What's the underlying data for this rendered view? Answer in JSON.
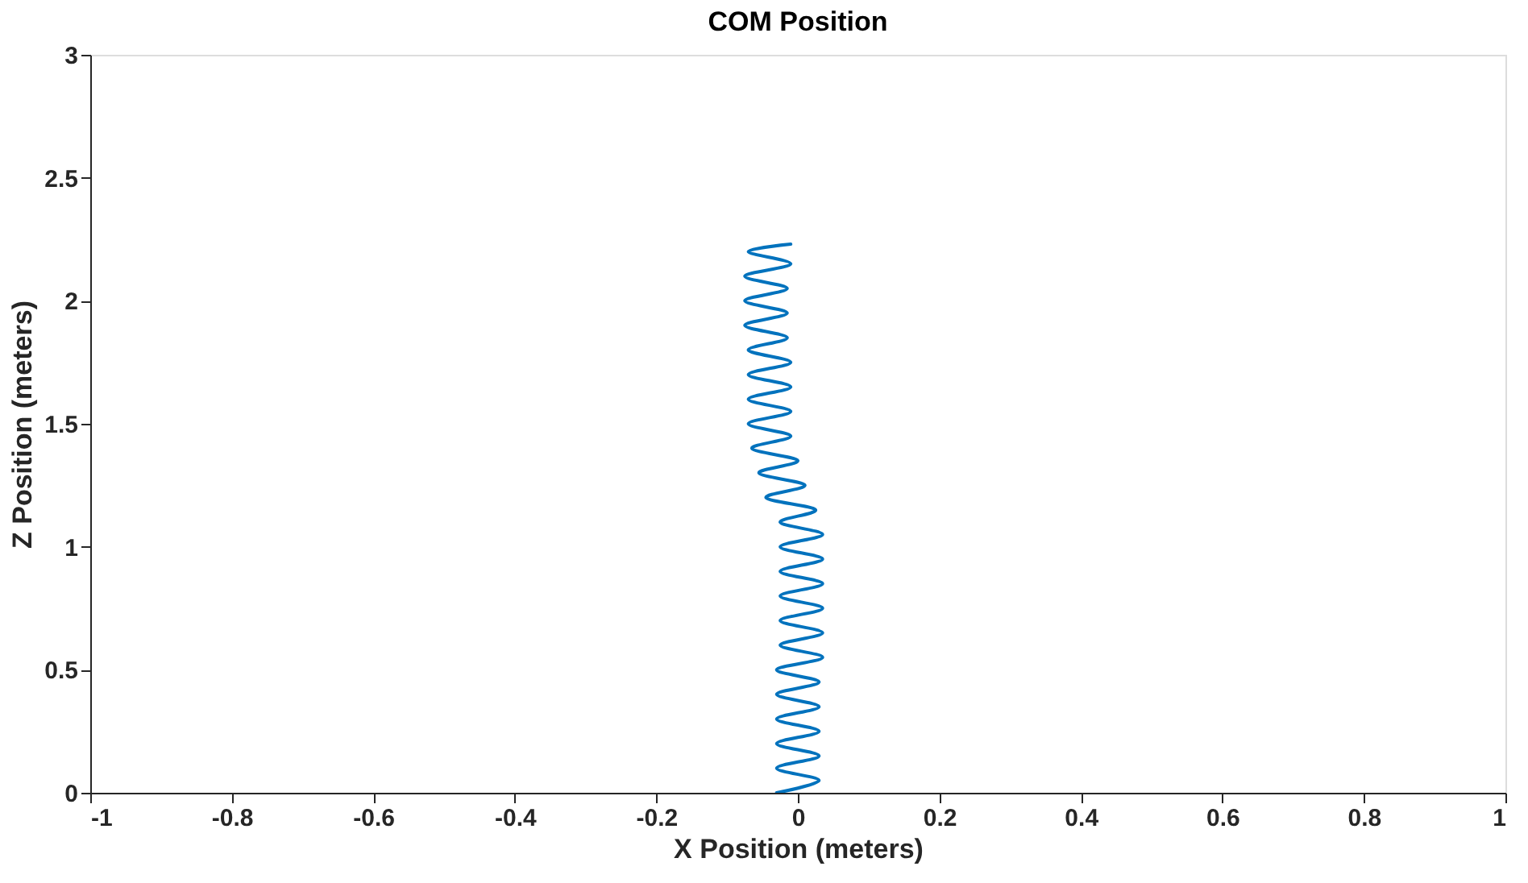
{
  "chart_data": {
    "type": "line",
    "title": "COM Position",
    "xlabel": "X Position (meters)",
    "ylabel": "Z Position (meters)",
    "series": [
      {
        "color": "#0072bd",
        "x": [
          -0.03,
          0.03,
          -0.03,
          0.03,
          -0.03,
          0.03,
          -0.03,
          0.03,
          -0.03,
          0.03,
          -0.03,
          0.035,
          -0.025,
          0.035,
          -0.025,
          0.035,
          -0.025,
          0.035,
          -0.025,
          0.035,
          -0.025,
          0.035,
          -0.025,
          0.025,
          -0.045,
          0.01,
          -0.055,
          0.0,
          -0.065,
          -0.01,
          -0.07,
          -0.01,
          -0.07,
          -0.01,
          -0.07,
          -0.01,
          -0.07,
          -0.015,
          -0.075,
          -0.015,
          -0.075,
          -0.015,
          -0.075,
          -0.01,
          -0.07,
          -0.01
        ],
        "values": [
          0.0,
          0.05,
          0.1,
          0.15,
          0.2,
          0.25,
          0.3,
          0.35,
          0.4,
          0.45,
          0.5,
          0.55,
          0.6,
          0.65,
          0.7,
          0.75,
          0.8,
          0.85,
          0.9,
          0.95,
          1.0,
          1.05,
          1.1,
          1.15,
          1.2,
          1.25,
          1.3,
          1.35,
          1.4,
          1.45,
          1.5,
          1.55,
          1.6,
          1.65,
          1.7,
          1.75,
          1.8,
          1.85,
          1.9,
          1.95,
          2.0,
          2.05,
          2.1,
          2.15,
          2.2,
          2.23
        ]
      }
    ],
    "xlim": [
      -1,
      1
    ],
    "xticks": [
      -1,
      -0.8,
      -0.6,
      -0.4,
      -0.2,
      0,
      0.2,
      0.4,
      0.6,
      0.8,
      1
    ],
    "ylim": [
      0,
      3
    ],
    "yticks": [
      0,
      0.5,
      1,
      1.5,
      2,
      2.5,
      3
    ],
    "grid": false,
    "marker": "none",
    "line_style": "solid"
  }
}
